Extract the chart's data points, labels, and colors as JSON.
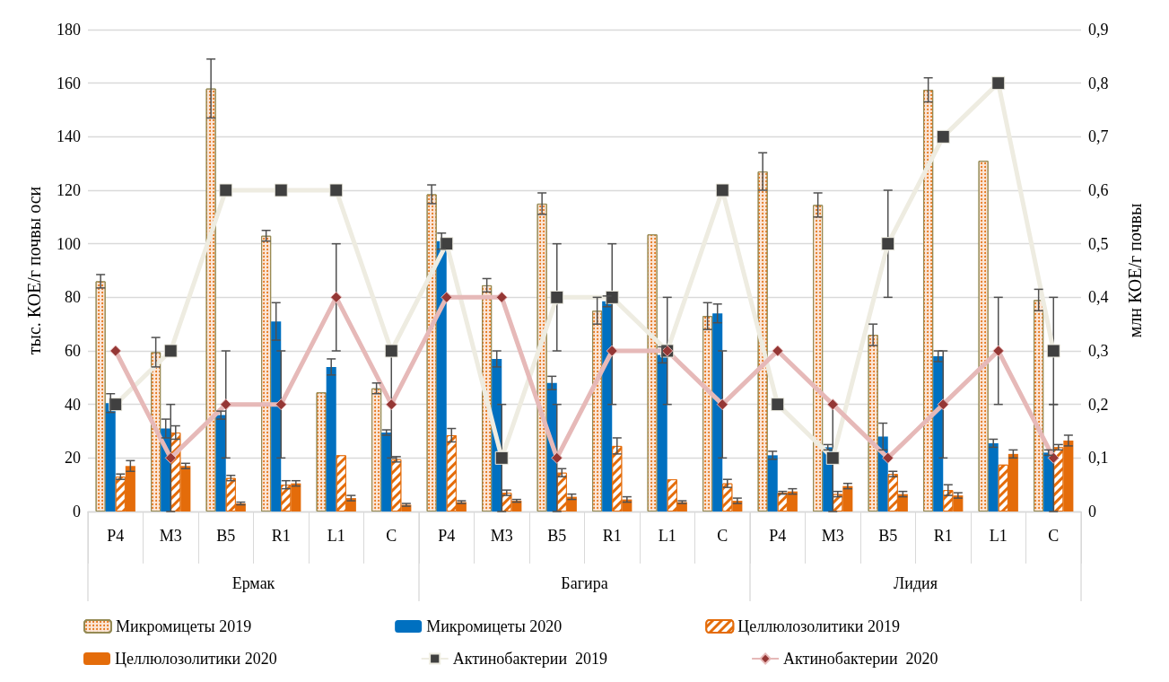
{
  "chart_data": {
    "type": "bar",
    "ylabel": "тыс. КОЕ/г почвы оси",
    "y2label": "млн КОЕ/г почвы",
    "categories": [
      "P4",
      "M3",
      "B5",
      "R1",
      "L1",
      "C",
      "P4",
      "M3",
      "B5",
      "R1",
      "L1",
      "C",
      "P4",
      "M3",
      "B5",
      "R1",
      "L1",
      "C"
    ],
    "annotations": [
      "Ермак",
      "Багира",
      "Лидия"
    ],
    "series": [
      {
        "name": "Микромицеты 2019",
        "color": "#fbe5d6",
        "values": [
          86,
          59.5,
          158,
          103,
          44.5,
          46,
          118.5,
          84.5,
          115,
          75,
          103.5,
          73,
          127,
          114.5,
          66,
          157.5,
          131,
          79
        ],
        "errors": [
          2.5,
          5.5,
          11,
          2,
          null,
          2,
          3.5,
          2.5,
          4,
          5,
          null,
          5,
          7,
          4.5,
          4,
          4.5,
          null,
          4
        ]
      },
      {
        "name": "Микромицеты 2020",
        "color": "#0070c0",
        "values": [
          40.5,
          31,
          36,
          71,
          54,
          29.5,
          101,
          57,
          48,
          78.5,
          58.5,
          74,
          21,
          24,
          28,
          58,
          25.5,
          22
        ],
        "errors": [
          3.5,
          3.5,
          1.5,
          7,
          3,
          1,
          3,
          3,
          2.5,
          2,
          3,
          3.5,
          1.5,
          1,
          5,
          2,
          1.5,
          1
        ]
      },
      {
        "name": "Целлюлозолитики 2019",
        "color": "#e46c0a",
        "values": [
          13,
          29.5,
          12.5,
          10,
          21,
          19.5,
          28.5,
          7,
          14.5,
          24.5,
          12,
          10.5,
          7,
          6.5,
          14,
          8,
          17.5,
          24
        ],
        "errors": [
          1,
          2.5,
          1,
          1.5,
          null,
          1,
          2.5,
          1,
          1.5,
          3,
          null,
          1.5,
          0.5,
          1,
          1,
          2,
          null,
          1
        ]
      },
      {
        "name": "Целлюлозолитики 2020",
        "color": "#e46c0a",
        "values": [
          17,
          17,
          3,
          10.5,
          5,
          2.5,
          3.5,
          4,
          5.5,
          4.5,
          3.5,
          4,
          7.5,
          9.5,
          6.5,
          6,
          21.5,
          26.5
        ],
        "errors": [
          2,
          1,
          0.5,
          1,
          1,
          0.5,
          0.5,
          0.5,
          1,
          1,
          0.5,
          1,
          1,
          1,
          1,
          1,
          1.5,
          2
        ]
      },
      {
        "name": "Актинобактерии  2019",
        "type": "line",
        "axis": "y2",
        "color": "#eeece1",
        "marker": "square",
        "values": [
          0.2,
          0.3,
          0.6,
          0.6,
          0.6,
          0.3,
          0.5,
          0.1,
          0.4,
          0.4,
          0.3,
          0.6,
          0.2,
          0.1,
          0.5,
          0.7,
          0.8,
          0.3
        ],
        "errors": [
          null,
          null,
          null,
          null,
          null,
          null,
          null,
          0.1,
          0.1,
          0.1,
          null,
          null,
          null,
          0.1,
          0.1,
          null,
          null,
          0.1
        ]
      },
      {
        "name": "Актинобактерии  2020",
        "type": "line",
        "axis": "y2",
        "color": "#e6b9b8",
        "marker": "diamond",
        "values": [
          0.3,
          0.1,
          0.2,
          0.2,
          0.4,
          0.2,
          0.4,
          0.4,
          0.1,
          0.3,
          0.3,
          0.2,
          0.3,
          0.2,
          0.1,
          0.2,
          0.3,
          0.1
        ],
        "errors": [
          null,
          0.1,
          0.1,
          0.1,
          0.1,
          0.1,
          null,
          null,
          0.1,
          0.1,
          0.1,
          0.1,
          null,
          null,
          null,
          0.1,
          0.1,
          0.1
        ]
      }
    ],
    "ylim": [
      0,
      180
    ],
    "yticks": [
      0,
      20,
      40,
      60,
      80,
      100,
      120,
      140,
      160,
      180
    ],
    "y2lim": [
      0,
      0.9
    ],
    "y2ticks": [
      0,
      {
        "value": 0.1,
        "label": "0,1"
      },
      {
        "value": 0.2,
        "label": "0,2"
      },
      {
        "value": 0.3,
        "label": "0,3"
      },
      {
        "value": 0.4,
        "label": "0,4"
      },
      {
        "value": 0.5,
        "label": "0,5"
      },
      {
        "value": 0.6,
        "label": "0,6"
      },
      {
        "value": 0.7,
        "label": "0,7"
      },
      {
        "value": 0.8,
        "label": "0,8"
      },
      {
        "value": 0.9,
        "label": "0,9"
      }
    ],
    "grid": "y",
    "legend": "bottom",
    "line_style": "solid"
  }
}
